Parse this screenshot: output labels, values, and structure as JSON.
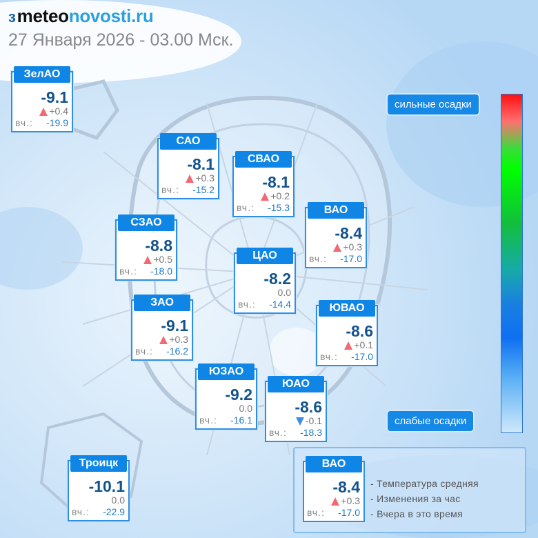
{
  "logo": {
    "mark": "ɜ",
    "part1": "meteo",
    "part2": "novosti.ru"
  },
  "date": "27 Января 2026 - 03.00 Мск.",
  "yesterday_label": "вч.:",
  "scale": {
    "top_label": "сильные осадки",
    "bottom_label": "слабые осадки"
  },
  "districts": [
    {
      "name": "ЗелАО",
      "temp": "-9.1",
      "change": "+0.4",
      "dir": "up",
      "yesterday": "-19.9"
    },
    {
      "name": "САО",
      "temp": "-8.1",
      "change": "+0.3",
      "dir": "up",
      "yesterday": "-15.2"
    },
    {
      "name": "СВАО",
      "temp": "-8.1",
      "change": "+0.2",
      "dir": "up",
      "yesterday": "-15.3"
    },
    {
      "name": "ВАО",
      "temp": "-8.4",
      "change": "+0.3",
      "dir": "up",
      "yesterday": "-17.0"
    },
    {
      "name": "СЗАО",
      "temp": "-8.8",
      "change": "+0.5",
      "dir": "up",
      "yesterday": "-18.0"
    },
    {
      "name": "ЦАО",
      "temp": "-8.2",
      "change": "0.0",
      "dir": "none",
      "yesterday": "-14.4"
    },
    {
      "name": "ЗАО",
      "temp": "-9.1",
      "change": "+0.3",
      "dir": "up",
      "yesterday": "-16.2"
    },
    {
      "name": "ЮВАО",
      "temp": "-8.6",
      "change": "+0.1",
      "dir": "up",
      "yesterday": "-17.0"
    },
    {
      "name": "ЮЗАО",
      "temp": "-9.2",
      "change": "0.0",
      "dir": "none",
      "yesterday": "-16.1"
    },
    {
      "name": "ЮАО",
      "temp": "-8.6",
      "change": "-0.1",
      "dir": "down",
      "yesterday": "-18.3"
    },
    {
      "name": "Троицк",
      "temp": "-10.1",
      "change": "0.0",
      "dir": "none",
      "yesterday": "-22.9"
    }
  ],
  "legend": {
    "sample": {
      "name": "ВАО",
      "temp": "-8.4",
      "change": "+0.3",
      "dir": "up",
      "yesterday": "-17.0"
    },
    "items": [
      "- Температура средняя",
      "- Изменения за час",
      "- Вчера в это время"
    ]
  },
  "colors": {
    "accent": "#0f86e6",
    "temp": "#13538c",
    "up": "#f06a73",
    "down": "#3b8fe0"
  }
}
